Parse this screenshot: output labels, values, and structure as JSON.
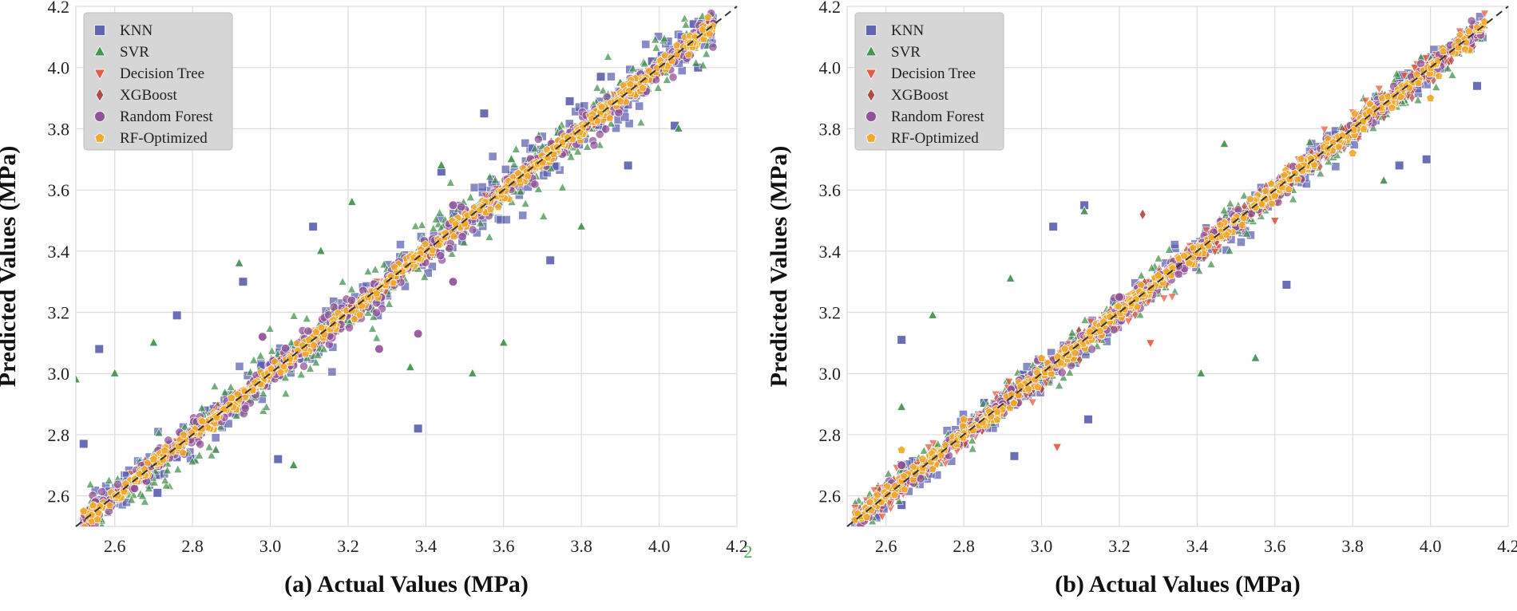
{
  "stray_label": "2",
  "chart_data": [
    {
      "type": "scatter",
      "panel": "a",
      "xlabel": "(a) Actual Values (MPa)",
      "ylabel": "Predicted Values (MPa)",
      "xlim": [
        2.5,
        4.2
      ],
      "ylim": [
        2.5,
        4.2
      ],
      "xticks": [
        "2.6",
        "2.8",
        "3.0",
        "3.2",
        "3.4",
        "3.6",
        "3.8",
        "4.0",
        "4.2"
      ],
      "yticks": [
        "2.6",
        "2.8",
        "3.0",
        "3.2",
        "3.4",
        "3.6",
        "3.8",
        "4.0",
        "4.2"
      ],
      "reference_line": "y = x",
      "legend_position": "upper-left",
      "series": [
        {
          "name": "KNN",
          "marker": "square",
          "color": "#5b5fb0",
          "spread": 0.085,
          "points": [
            [
              2.52,
              2.77
            ],
            [
              2.56,
              3.08
            ],
            [
              2.71,
              2.61
            ],
            [
              2.76,
              3.19
            ],
            [
              2.93,
              3.3
            ],
            [
              3.02,
              2.72
            ],
            [
              3.11,
              3.48
            ],
            [
              3.38,
              2.82
            ],
            [
              3.44,
              3.66
            ],
            [
              3.55,
              3.85
            ],
            [
              3.72,
              3.37
            ],
            [
              3.77,
              3.89
            ],
            [
              3.85,
              3.97
            ],
            [
              3.92,
              3.68
            ],
            [
              4.04,
              3.81
            ],
            [
              4.1,
              4.0
            ]
          ]
        },
        {
          "name": "SVR",
          "marker": "triangle",
          "color": "#3f8f4a",
          "spread": 0.11,
          "points": [
            [
              2.5,
              2.98
            ],
            [
              2.6,
              3.0
            ],
            [
              2.7,
              3.1
            ],
            [
              2.86,
              2.75
            ],
            [
              2.92,
              3.36
            ],
            [
              3.06,
              2.7
            ],
            [
              3.13,
              3.4
            ],
            [
              3.21,
              3.56
            ],
            [
              3.36,
              3.02
            ],
            [
              3.44,
              3.68
            ],
            [
              3.52,
              3.0
            ],
            [
              3.6,
              3.1
            ],
            [
              3.62,
              3.7
            ],
            [
              3.8,
              3.48
            ],
            [
              3.9,
              3.95
            ],
            [
              4.05,
              3.8
            ]
          ]
        },
        {
          "name": "Decision Tree",
          "marker": "triangle-down",
          "color": "#e8553a",
          "spread": 0.025,
          "points": [
            [
              2.52,
              2.53
            ],
            [
              3.0,
              3.01
            ],
            [
              3.6,
              3.58
            ]
          ]
        },
        {
          "name": "XGBoost",
          "marker": "diamond",
          "color": "#b1443a",
          "spread": 0.025,
          "points": [
            [
              2.53,
              2.55
            ],
            [
              3.3,
              3.31
            ],
            [
              4.08,
              4.08
            ]
          ]
        },
        {
          "name": "Random Forest",
          "marker": "circle",
          "color": "#8e4e96",
          "spread": 0.06,
          "points": [
            [
              2.55,
              2.58
            ],
            [
              2.98,
              3.12
            ],
            [
              3.28,
              3.08
            ],
            [
              3.38,
              3.13
            ],
            [
              3.47,
              3.3
            ],
            [
              3.47,
              3.55
            ],
            [
              4.08,
              4.07
            ]
          ]
        },
        {
          "name": "RF-Optimized",
          "marker": "pentagon",
          "color": "#f4a724",
          "spread": 0.03,
          "points": [
            [
              2.52,
              2.55
            ],
            [
              2.7,
              2.72
            ],
            [
              2.9,
              2.92
            ],
            [
              3.1,
              3.11
            ],
            [
              3.3,
              3.3
            ],
            [
              3.5,
              3.49
            ],
            [
              3.7,
              3.69
            ],
            [
              3.9,
              3.89
            ],
            [
              4.08,
              4.08
            ]
          ]
        }
      ]
    },
    {
      "type": "scatter",
      "panel": "b",
      "xlabel": "(b) Actual Values (MPa)",
      "ylabel": "Predicted Values (MPa)",
      "xlim": [
        2.5,
        4.2
      ],
      "ylim": [
        2.5,
        4.2
      ],
      "xticks": [
        "2.6",
        "2.8",
        "3.0",
        "3.2",
        "3.4",
        "3.6",
        "3.8",
        "4.0",
        "4.2"
      ],
      "yticks": [
        "2.6",
        "2.8",
        "3.0",
        "3.2",
        "3.4",
        "3.6",
        "3.8",
        "4.0",
        "4.2"
      ],
      "reference_line": "y = x",
      "legend_position": "upper-left",
      "series": [
        {
          "name": "KNN",
          "marker": "square",
          "color": "#5b5fb0",
          "spread": 0.06,
          "points": [
            [
              2.64,
              2.57
            ],
            [
              2.64,
              3.11
            ],
            [
              2.93,
              2.73
            ],
            [
              3.03,
              3.48
            ],
            [
              3.11,
              3.55
            ],
            [
              3.12,
              2.85
            ],
            [
              3.63,
              3.29
            ],
            [
              3.92,
              3.68
            ],
            [
              3.99,
              3.7
            ],
            [
              4.12,
              3.94
            ]
          ]
        },
        {
          "name": "SVR",
          "marker": "triangle",
          "color": "#3f8f4a",
          "spread": 0.07,
          "points": [
            [
              2.64,
              2.89
            ],
            [
              2.72,
              3.19
            ],
            [
              2.92,
              3.31
            ],
            [
              3.11,
              3.53
            ],
            [
              3.41,
              3.0
            ],
            [
              3.47,
              3.75
            ],
            [
              3.55,
              3.05
            ],
            [
              3.88,
              3.63
            ]
          ]
        },
        {
          "name": "Decision Tree",
          "marker": "triangle-down",
          "color": "#e8553a",
          "spread": 0.05,
          "points": [
            [
              2.72,
              2.7
            ],
            [
              3.04,
              2.76
            ],
            [
              3.28,
              3.1
            ],
            [
              3.6,
              3.5
            ],
            [
              3.96,
              4.0
            ]
          ]
        },
        {
          "name": "XGBoost",
          "marker": "diamond",
          "color": "#b1443a",
          "spread": 0.04,
          "points": [
            [
              2.64,
              2.64
            ],
            [
              3.0,
              2.95
            ],
            [
              3.26,
              3.52
            ],
            [
              3.86,
              3.85
            ],
            [
              4.11,
              4.07
            ]
          ]
        },
        {
          "name": "Random Forest",
          "marker": "circle",
          "color": "#8e4e96",
          "spread": 0.04,
          "points": [
            [
              2.64,
              2.7
            ],
            [
              2.9,
              2.9
            ],
            [
              3.2,
              3.25
            ],
            [
              3.5,
              3.48
            ],
            [
              3.91,
              3.9
            ],
            [
              4.07,
              4.05
            ]
          ]
        },
        {
          "name": "RF-Optimized",
          "marker": "pentagon",
          "color": "#f4a724",
          "spread": 0.03,
          "points": [
            [
              2.64,
              2.75
            ],
            [
              2.8,
              2.85
            ],
            [
              3.0,
              3.05
            ],
            [
              3.3,
              3.32
            ],
            [
              3.6,
              3.58
            ],
            [
              3.8,
              3.72
            ],
            [
              4.0,
              3.9
            ]
          ]
        }
      ]
    }
  ]
}
